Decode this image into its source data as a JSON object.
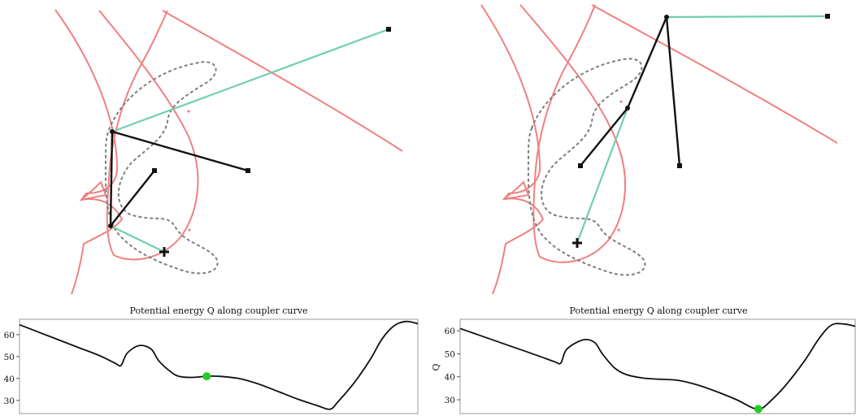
{
  "colors": {
    "coupler_curve": "#7f7f7f",
    "singular_curve": "#f08080",
    "linkage_bar": "#111111",
    "coupler_bar": "#6fcfae",
    "energy_curve": "#111111",
    "current_point": "#22cc22"
  },
  "panels": [
    {
      "id": "left",
      "plot_title": "Potential energy Q along coupler curve",
      "ylabel": ""
    },
    {
      "id": "right",
      "plot_title": "Potential energy Q along coupler curve",
      "ylabel": "Q"
    }
  ],
  "chart_data": [
    {
      "type": "line",
      "title": "Potential energy Q along coupler curve",
      "xlabel": "",
      "ylabel": "",
      "ylim": [
        24,
        67
      ],
      "yticks": [
        30,
        40,
        50,
        60
      ],
      "xlim": [
        0,
        1
      ],
      "series": [
        {
          "x": [
            0.0,
            0.05,
            0.1,
            0.15,
            0.2,
            0.24,
            0.255,
            0.27,
            0.3,
            0.33,
            0.35,
            0.38,
            0.4,
            0.43,
            0.47,
            0.5,
            0.55,
            0.6,
            0.65,
            0.7,
            0.75,
            0.78,
            0.8,
            0.84,
            0.88,
            0.91,
            0.94,
            0.97,
            1.0
          ],
          "y": [
            64.5,
            61.0,
            57.5,
            54.0,
            50.5,
            47.0,
            46.0,
            51.5,
            55.0,
            53.5,
            48.0,
            43.0,
            41.0,
            40.5,
            41.0,
            41.0,
            40.0,
            37.5,
            34.0,
            30.5,
            27.5,
            26.0,
            29.5,
            38.0,
            48.5,
            58.0,
            64.0,
            66.0,
            65.0
          ]
        }
      ],
      "highlight_point": {
        "x": 0.47,
        "y": 41.0
      }
    },
    {
      "type": "line",
      "title": "Potential energy Q along coupler curve",
      "xlabel": "",
      "ylabel": "Q",
      "ylim": [
        24,
        65
      ],
      "yticks": [
        30,
        40,
        50,
        60
      ],
      "xlim": [
        0,
        1
      ],
      "series": [
        {
          "x": [
            0.0,
            0.05,
            0.1,
            0.15,
            0.2,
            0.24,
            0.255,
            0.27,
            0.31,
            0.34,
            0.36,
            0.39,
            0.42,
            0.46,
            0.5,
            0.55,
            0.6,
            0.65,
            0.7,
            0.74,
            0.76,
            0.78,
            0.82,
            0.87,
            0.91,
            0.94,
            0.97,
            1.0
          ],
          "y": [
            61.0,
            58.0,
            55.0,
            52.0,
            49.0,
            46.5,
            46.0,
            52.0,
            56.0,
            55.0,
            50.0,
            44.0,
            41.0,
            39.5,
            39.0,
            38.5,
            36.5,
            33.5,
            30.0,
            26.5,
            26.0,
            28.5,
            35.5,
            46.5,
            57.0,
            62.5,
            63.0,
            62.0
          ]
        }
      ],
      "highlight_point": {
        "x": 0.755,
        "y": 26.0
      }
    }
  ]
}
